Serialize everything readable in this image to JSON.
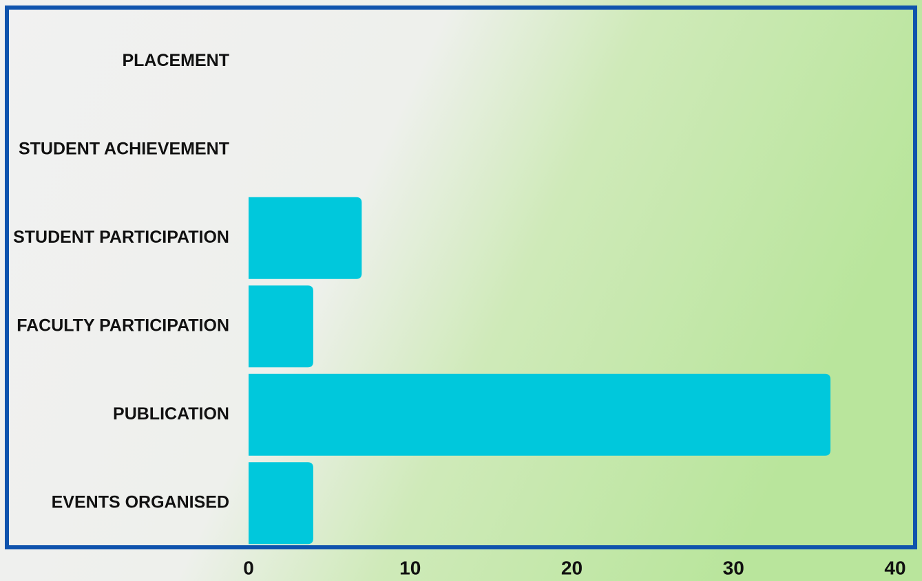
{
  "chart_data": {
    "type": "hbar",
    "categories": [
      "PLACEMENT",
      "STUDENT ACHIEVEMENT",
      "STUDENT PARTICIPATION",
      "FACULTY PARTICIPATION",
      "PUBLICATION",
      "EVENTS ORGANISED"
    ],
    "values": [
      0,
      0,
      7,
      4,
      36,
      4
    ],
    "color": "#00c8dc",
    "xlim": [
      0,
      40
    ],
    "xticks": [
      0,
      10,
      20,
      30,
      40
    ],
    "grid": false
  }
}
